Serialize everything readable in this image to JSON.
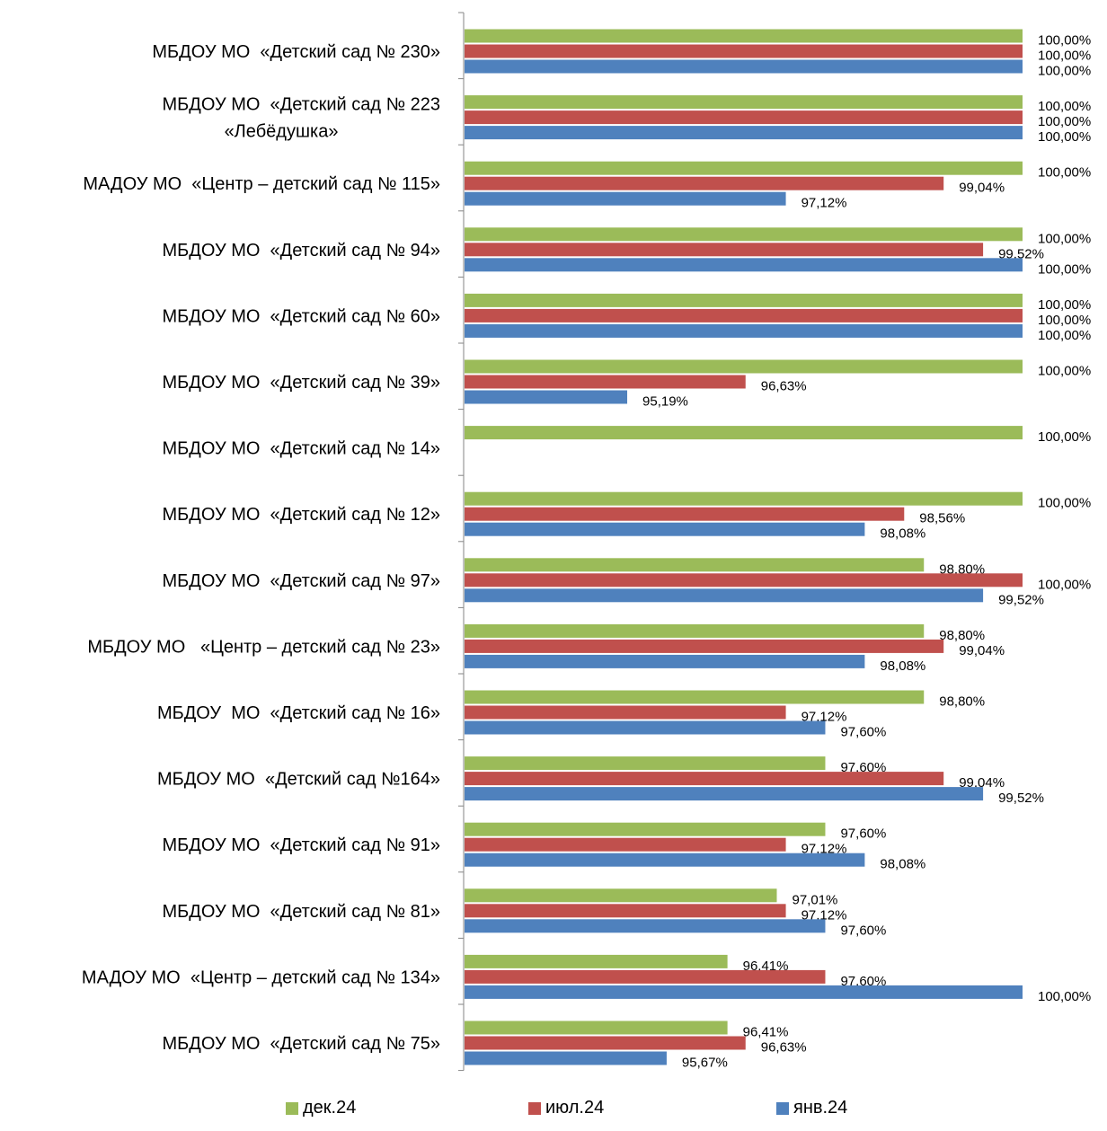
{
  "chart_data": {
    "type": "bar",
    "orientation": "horizontal",
    "categories": [
      "МБДОУ МО  «Детский сад № 230»",
      "МБДОУ МО  «Детский сад № 223 «Лебёдушка»",
      "МАДОУ МО  «Центр – детский сад № 115»",
      "МБДОУ МО  «Детский сад № 94»",
      "МБДОУ МО  «Детский сад № 60»",
      "МБДОУ МО  «Детский сад № 39»",
      "МБДОУ МО  «Детский сад № 14»",
      "МБДОУ МО  «Детский сад № 12»",
      "МБДОУ МО  «Детский сад № 97»",
      "МБДОУ МО   «Центр – детский сад № 23»",
      "МБДОУ  МО  «Детский сад № 16»",
      "МБДОУ МО  «Детский сад №164»",
      "МБДОУ МО  «Детский сад № 91»",
      "МБДОУ МО  «Детский сад № 81»",
      "МАДОУ МО  «Центр – детский сад № 134»",
      "МБДОУ МО  «Детский сад № 75»"
    ],
    "category_lines": [
      [
        "МБДОУ МО  «Детский сад № 230»"
      ],
      [
        "МБДОУ МО  «Детский сад № 223",
        "«Лебёдушка»"
      ],
      [
        "МАДОУ МО  «Центр – детский сад № 115»"
      ],
      [
        "МБДОУ МО  «Детский сад № 94»"
      ],
      [
        "МБДОУ МО  «Детский сад № 60»"
      ],
      [
        "МБДОУ МО  «Детский сад № 39»"
      ],
      [
        "МБДОУ МО  «Детский сад № 14»"
      ],
      [
        "МБДОУ МО  «Детский сад № 12»"
      ],
      [
        "МБДОУ МО  «Детский сад № 97»"
      ],
      [
        "МБДОУ МО   «Центр – детский сад № 23»"
      ],
      [
        "МБДОУ  МО  «Детский сад № 16»"
      ],
      [
        "МБДОУ МО  «Детский сад №164»"
      ],
      [
        "МБДОУ МО  «Детский сад № 91»"
      ],
      [
        "МБДОУ МО  «Детский сад № 81»"
      ],
      [
        "МАДОУ МО  «Центр – детский сад № 134»"
      ],
      [
        "МБДОУ МО  «Детский сад № 75»"
      ]
    ],
    "series": [
      {
        "name": "дек.24",
        "color": "#9BBB59",
        "values": [
          100,
          100,
          100,
          100,
          100,
          100,
          100,
          100,
          98.8,
          98.8,
          98.8,
          97.6,
          97.6,
          97.01,
          96.41,
          96.41
        ],
        "labels": [
          "100,00%",
          "100,00%",
          "100,00%",
          "100,00%",
          "100,00%",
          "100,00%",
          "100,00%",
          "100,00%",
          "98,80%",
          "98,80%",
          "98,80%",
          "97,60%",
          "97,60%",
          "97,01%",
          "96,41%",
          "96,41%"
        ]
      },
      {
        "name": "июл.24",
        "color": "#C0504D",
        "values": [
          100,
          100,
          99.04,
          99.52,
          100,
          96.63,
          null,
          98.56,
          100,
          99.04,
          97.12,
          99.04,
          97.12,
          97.12,
          97.6,
          96.63
        ],
        "labels": [
          "100,00%",
          "100,00%",
          "99,04%",
          "99,52%",
          "100,00%",
          "96,63%",
          null,
          "98,56%",
          "100,00%",
          "99,04%",
          "97,12%",
          "99,04%",
          "97,12%",
          "97,12%",
          "97,60%",
          "96,63%"
        ]
      },
      {
        "name": "янв.24",
        "color": "#4F81BD",
        "values": [
          100,
          100,
          97.12,
          100,
          100,
          95.19,
          null,
          98.08,
          99.52,
          98.08,
          97.6,
          99.52,
          98.08,
          97.6,
          100,
          95.67
        ],
        "labels": [
          "100,00%",
          "100,00%",
          "97,12%",
          "100,00%",
          "100,00%",
          "95,19%",
          null,
          "98,08%",
          "99,52%",
          "98,08%",
          "97,60%",
          "99,52%",
          "98,08%",
          "97,60%",
          "100,00%",
          "95,67%"
        ]
      }
    ],
    "xlim": [
      93.2,
      100
    ],
    "grid": false,
    "legend_position": "bottom"
  }
}
